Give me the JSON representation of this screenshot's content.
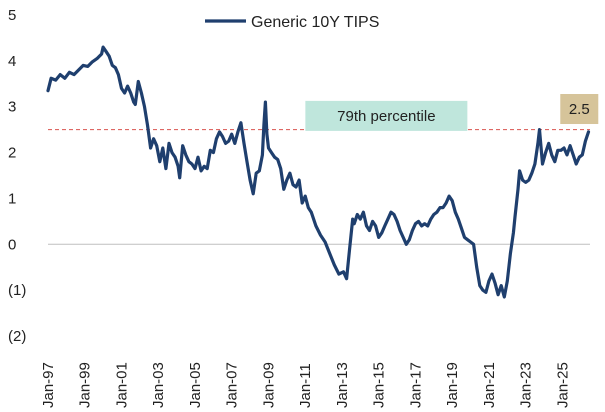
{
  "chart_data": {
    "type": "line",
    "title": "",
    "xlabel": "",
    "ylabel": "",
    "ylim": [
      -2,
      5
    ],
    "y_ticks": [
      {
        "value": 5,
        "label": "5"
      },
      {
        "value": 4,
        "label": "4"
      },
      {
        "value": 3,
        "label": "3"
      },
      {
        "value": 2,
        "label": "2"
      },
      {
        "value": 1,
        "label": "1"
      },
      {
        "value": 0,
        "label": "0"
      },
      {
        "value": -1,
        "label": "(1)"
      },
      {
        "value": -2,
        "label": "(2)"
      }
    ],
    "x_range": [
      "1997-01",
      "2026-07"
    ],
    "x_ticks": [
      "Jan-97",
      "Jan-99",
      "Jan-01",
      "Jan-03",
      "Jan-05",
      "Jan-07",
      "Jan-09",
      "Jan-11",
      "Jan-13",
      "Jan-15",
      "Jan-17",
      "Jan-19",
      "Jan-21",
      "Jan-23",
      "Jan-25"
    ],
    "legend": {
      "position": "top-center"
    },
    "grid": false,
    "series": [
      {
        "name": "Generic 10Y TIPS",
        "color": "#1f3f6e",
        "points": [
          [
            "1997-01",
            3.35
          ],
          [
            "1997-03",
            3.62
          ],
          [
            "1997-06",
            3.58
          ],
          [
            "1997-09",
            3.7
          ],
          [
            "1997-12",
            3.62
          ],
          [
            "1998-03",
            3.75
          ],
          [
            "1998-06",
            3.7
          ],
          [
            "1998-09",
            3.8
          ],
          [
            "1998-12",
            3.9
          ],
          [
            "1999-03",
            3.88
          ],
          [
            "1999-06",
            3.98
          ],
          [
            "1999-09",
            4.05
          ],
          [
            "1999-12",
            4.15
          ],
          [
            "2000-01",
            4.3
          ],
          [
            "2000-03",
            4.2
          ],
          [
            "2000-05",
            4.1
          ],
          [
            "2000-07",
            3.9
          ],
          [
            "2000-09",
            3.85
          ],
          [
            "2000-11",
            3.7
          ],
          [
            "2001-01",
            3.4
          ],
          [
            "2001-03",
            3.3
          ],
          [
            "2001-05",
            3.45
          ],
          [
            "2001-07",
            3.3
          ],
          [
            "2001-09",
            3.1
          ],
          [
            "2001-10",
            3.05
          ],
          [
            "2001-12",
            3.55
          ],
          [
            "2002-02",
            3.3
          ],
          [
            "2002-04",
            3.0
          ],
          [
            "2002-06",
            2.6
          ],
          [
            "2002-08",
            2.1
          ],
          [
            "2002-10",
            2.3
          ],
          [
            "2002-12",
            2.15
          ],
          [
            "2003-02",
            1.8
          ],
          [
            "2003-04",
            2.1
          ],
          [
            "2003-06",
            1.65
          ],
          [
            "2003-08",
            2.2
          ],
          [
            "2003-10",
            2.0
          ],
          [
            "2003-12",
            1.9
          ],
          [
            "2004-02",
            1.7
          ],
          [
            "2004-03",
            1.45
          ],
          [
            "2004-05",
            2.15
          ],
          [
            "2004-07",
            1.95
          ],
          [
            "2004-09",
            1.8
          ],
          [
            "2004-11",
            1.75
          ],
          [
            "2005-01",
            1.65
          ],
          [
            "2005-03",
            1.9
          ],
          [
            "2005-05",
            1.6
          ],
          [
            "2005-07",
            1.7
          ],
          [
            "2005-09",
            1.65
          ],
          [
            "2005-11",
            2.05
          ],
          [
            "2006-01",
            2.0
          ],
          [
            "2006-03",
            2.3
          ],
          [
            "2006-05",
            2.45
          ],
          [
            "2006-07",
            2.35
          ],
          [
            "2006-09",
            2.2
          ],
          [
            "2006-11",
            2.25
          ],
          [
            "2007-01",
            2.4
          ],
          [
            "2007-03",
            2.2
          ],
          [
            "2007-05",
            2.45
          ],
          [
            "2007-07",
            2.65
          ],
          [
            "2007-09",
            2.2
          ],
          [
            "2007-11",
            1.8
          ],
          [
            "2008-01",
            1.4
          ],
          [
            "2008-03",
            1.1
          ],
          [
            "2008-05",
            1.55
          ],
          [
            "2008-07",
            1.6
          ],
          [
            "2008-09",
            1.95
          ],
          [
            "2008-10",
            2.6
          ],
          [
            "2008-11",
            3.1
          ],
          [
            "2008-12",
            2.4
          ],
          [
            "2009-01",
            2.1
          ],
          [
            "2009-03",
            2.0
          ],
          [
            "2009-05",
            1.9
          ],
          [
            "2009-07",
            1.85
          ],
          [
            "2009-09",
            1.65
          ],
          [
            "2009-11",
            1.2
          ],
          [
            "2010-01",
            1.4
          ],
          [
            "2010-03",
            1.55
          ],
          [
            "2010-05",
            1.3
          ],
          [
            "2010-07",
            1.25
          ],
          [
            "2010-09",
            1.4
          ],
          [
            "2010-11",
            0.9
          ],
          [
            "2011-01",
            1.05
          ],
          [
            "2011-03",
            0.8
          ],
          [
            "2011-05",
            0.7
          ],
          [
            "2011-08",
            0.4
          ],
          [
            "2011-11",
            0.2
          ],
          [
            "2012-02",
            0.05
          ],
          [
            "2012-05",
            -0.2
          ],
          [
            "2012-08",
            -0.45
          ],
          [
            "2012-11",
            -0.65
          ],
          [
            "2013-02",
            -0.6
          ],
          [
            "2013-04",
            -0.75
          ],
          [
            "2013-06",
            -0.1
          ],
          [
            "2013-08",
            0.55
          ],
          [
            "2013-09",
            0.45
          ],
          [
            "2013-11",
            0.65
          ],
          [
            "2014-01",
            0.55
          ],
          [
            "2014-03",
            0.7
          ],
          [
            "2014-05",
            0.4
          ],
          [
            "2014-07",
            0.3
          ],
          [
            "2014-09",
            0.5
          ],
          [
            "2014-11",
            0.4
          ],
          [
            "2015-01",
            0.15
          ],
          [
            "2015-03",
            0.25
          ],
          [
            "2015-05",
            0.4
          ],
          [
            "2015-07",
            0.55
          ],
          [
            "2015-09",
            0.7
          ],
          [
            "2015-11",
            0.65
          ],
          [
            "2016-01",
            0.5
          ],
          [
            "2016-03",
            0.3
          ],
          [
            "2016-05",
            0.15
          ],
          [
            "2016-07",
            0.0
          ],
          [
            "2016-09",
            0.1
          ],
          [
            "2016-11",
            0.3
          ],
          [
            "2017-01",
            0.45
          ],
          [
            "2017-03",
            0.5
          ],
          [
            "2017-05",
            0.4
          ],
          [
            "2017-07",
            0.45
          ],
          [
            "2017-09",
            0.4
          ],
          [
            "2017-11",
            0.55
          ],
          [
            "2018-01",
            0.65
          ],
          [
            "2018-03",
            0.7
          ],
          [
            "2018-05",
            0.8
          ],
          [
            "2018-07",
            0.8
          ],
          [
            "2018-09",
            0.9
          ],
          [
            "2018-11",
            1.05
          ],
          [
            "2019-01",
            0.95
          ],
          [
            "2019-03",
            0.7
          ],
          [
            "2019-05",
            0.55
          ],
          [
            "2019-07",
            0.35
          ],
          [
            "2019-09",
            0.15
          ],
          [
            "2019-11",
            0.1
          ],
          [
            "2020-01",
            0.05
          ],
          [
            "2020-03",
            0.0
          ],
          [
            "2020-05",
            -0.5
          ],
          [
            "2020-07",
            -0.9
          ],
          [
            "2020-09",
            -1.0
          ],
          [
            "2020-11",
            -1.05
          ],
          [
            "2021-01",
            -0.8
          ],
          [
            "2021-03",
            -0.65
          ],
          [
            "2021-05",
            -0.85
          ],
          [
            "2021-07",
            -1.1
          ],
          [
            "2021-09",
            -0.9
          ],
          [
            "2021-11",
            -1.15
          ],
          [
            "2022-01",
            -0.8
          ],
          [
            "2022-03",
            -0.2
          ],
          [
            "2022-05",
            0.25
          ],
          [
            "2022-06",
            0.6
          ],
          [
            "2022-08",
            1.2
          ],
          [
            "2022-09",
            1.6
          ],
          [
            "2022-11",
            1.4
          ],
          [
            "2023-01",
            1.35
          ],
          [
            "2023-03",
            1.4
          ],
          [
            "2023-05",
            1.55
          ],
          [
            "2023-07",
            1.75
          ],
          [
            "2023-09",
            2.2
          ],
          [
            "2023-10",
            2.5
          ],
          [
            "2023-12",
            1.75
          ],
          [
            "2024-02",
            2.0
          ],
          [
            "2024-04",
            2.2
          ],
          [
            "2024-06",
            1.95
          ],
          [
            "2024-08",
            1.8
          ],
          [
            "2024-10",
            2.05
          ],
          [
            "2024-12",
            2.05
          ],
          [
            "2025-02",
            2.1
          ],
          [
            "2025-04",
            1.95
          ],
          [
            "2025-06",
            2.15
          ],
          [
            "2025-08",
            1.95
          ],
          [
            "2025-10",
            1.75
          ],
          [
            "2025-12",
            1.9
          ],
          [
            "2026-02",
            1.95
          ],
          [
            "2026-04",
            2.25
          ],
          [
            "2026-06",
            2.45
          ]
        ]
      }
    ],
    "reference_line": {
      "value": 2.5,
      "color": "#d9534f",
      "style": "dashed"
    },
    "annotations": [
      {
        "text": "79th percentile",
        "background": "#bfe6dc",
        "near_date": "2015-06",
        "near_value": 2.8
      },
      {
        "text": "2.5",
        "background": "#d6c49a",
        "near_date": "2025-12",
        "near_value": 2.95
      }
    ]
  }
}
